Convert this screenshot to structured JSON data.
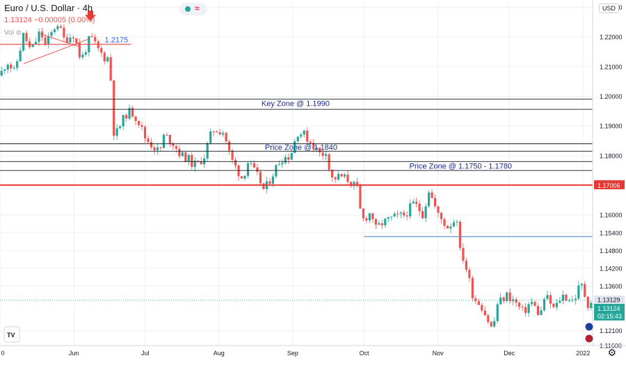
{
  "header": {
    "symbol_title": "Euro / U.S. Dollar · 4h",
    "ohlc_readout": "1.13124 −0.00005 (0.00%)",
    "volume_label": "Vol",
    "currency_button": "USD"
  },
  "colors": {
    "up": "#26a69a",
    "down": "#ef5350",
    "zone_line": "#131722",
    "key_red": "#e53935",
    "support_blue": "#4a7ec2",
    "label_blue": "#1b2a8a",
    "arrow_red": "#e53935"
  },
  "icons": {
    "settings": "gear-icon",
    "tradingview": "tv-logo-icon",
    "eye": "eye-off-icon",
    "flag_eu": "eu-flag-icon",
    "flag_us": "us-flag-icon"
  },
  "price_axis": {
    "labels": [
      "1.23000",
      "1.22000",
      "1.21000",
      "1.20000",
      "1.19000",
      "1.18000",
      "1.17006",
      "1.16000",
      "1.15400",
      "1.14800",
      "1.14200",
      "1.13600",
      "1.13129",
      "1.13124",
      "02:15:43",
      "1.12100",
      "1.11600"
    ],
    "ticks": [
      1.23,
      1.22,
      1.21,
      1.2,
      1.19,
      1.18,
      1.16,
      1.154,
      1.148,
      1.142,
      1.136,
      1.121,
      1.116
    ]
  },
  "time_axis": {
    "labels": [
      "0",
      "Jun",
      "Jul",
      "Aug",
      "Sep",
      "Oct",
      "Nov",
      "Dec",
      "2022"
    ]
  },
  "chart_data": {
    "type": "candlestick",
    "title": "Euro / U.S. Dollar · 4h",
    "xlabel": "",
    "ylabel": "",
    "ylim": [
      1.116,
      1.2315
    ],
    "x_range": [
      "2021-05-01",
      "2022-01-05"
    ],
    "current_price": 1.13124,
    "last_marker": 1.13129,
    "countdown": "02:15:43",
    "grid": true,
    "price_path": [
      [
        "2021-05-01",
        1.207
      ],
      [
        "2021-05-04",
        1.212
      ],
      [
        "2021-05-07",
        1.208
      ],
      [
        "2021-05-11",
        1.221
      ],
      [
        "2021-05-14",
        1.215
      ],
      [
        "2021-05-18",
        1.222
      ],
      [
        "2021-05-20",
        1.217
      ],
      [
        "2021-05-25",
        1.225
      ],
      [
        "2021-05-28",
        1.219
      ],
      [
        "2021-06-01",
        1.221
      ],
      [
        "2021-06-04",
        1.212
      ],
      [
        "2021-06-08",
        1.22
      ],
      [
        "2021-06-11",
        1.216
      ],
      [
        "2021-06-14",
        1.213
      ],
      [
        "2021-06-16",
        1.213
      ],
      [
        "2021-06-17",
        1.199
      ],
      [
        "2021-06-18",
        1.186
      ],
      [
        "2021-06-21",
        1.191
      ],
      [
        "2021-06-23",
        1.194
      ],
      [
        "2021-06-25",
        1.195
      ],
      [
        "2021-06-28",
        1.192
      ],
      [
        "2021-07-01",
        1.186
      ],
      [
        "2021-07-07",
        1.181
      ],
      [
        "2021-07-09",
        1.187
      ],
      [
        "2021-07-13",
        1.184
      ],
      [
        "2021-07-16",
        1.18
      ],
      [
        "2021-07-19",
        1.179
      ],
      [
        "2021-07-21",
        1.177
      ],
      [
        "2021-07-23",
        1.177
      ],
      [
        "2021-07-26",
        1.18
      ],
      [
        "2021-07-28",
        1.186
      ],
      [
        "2021-07-30",
        1.189
      ],
      [
        "2021-08-03",
        1.188
      ],
      [
        "2021-08-06",
        1.179
      ],
      [
        "2021-08-11",
        1.172
      ],
      [
        "2021-08-13",
        1.178
      ],
      [
        "2021-08-18",
        1.172
      ],
      [
        "2021-08-20",
        1.168
      ],
      [
        "2021-08-23",
        1.173
      ],
      [
        "2021-08-25",
        1.176
      ],
      [
        "2021-08-27",
        1.179
      ],
      [
        "2021-08-31",
        1.18
      ],
      [
        "2021-09-03",
        1.188
      ],
      [
        "2021-09-06",
        1.187
      ],
      [
        "2021-09-09",
        1.184
      ],
      [
        "2021-09-13",
        1.18
      ],
      [
        "2021-09-15",
        1.182
      ],
      [
        "2021-09-17",
        1.172
      ],
      [
        "2021-09-21",
        1.173
      ],
      [
        "2021-09-24",
        1.172
      ],
      [
        "2021-09-28",
        1.169
      ],
      [
        "2021-09-30",
        1.158
      ],
      [
        "2021-10-04",
        1.161
      ],
      [
        "2021-10-06",
        1.155
      ],
      [
        "2021-10-08",
        1.157
      ],
      [
        "2021-10-13",
        1.159
      ],
      [
        "2021-10-18",
        1.16
      ],
      [
        "2021-10-22",
        1.164
      ],
      [
        "2021-10-26",
        1.16
      ],
      [
        "2021-10-28",
        1.169
      ],
      [
        "2021-11-01",
        1.16
      ],
      [
        "2021-11-03",
        1.158
      ],
      [
        "2021-11-05",
        1.156
      ],
      [
        "2021-11-09",
        1.159
      ],
      [
        "2021-11-10",
        1.148
      ],
      [
        "2021-11-12",
        1.145
      ],
      [
        "2021-11-16",
        1.132
      ],
      [
        "2021-11-19",
        1.13
      ],
      [
        "2021-11-24",
        1.121
      ],
      [
        "2021-11-26",
        1.13
      ],
      [
        "2021-11-30",
        1.133
      ],
      [
        "2021-12-03",
        1.131
      ],
      [
        "2021-12-07",
        1.127
      ],
      [
        "2021-12-10",
        1.131
      ],
      [
        "2021-12-14",
        1.126
      ],
      [
        "2021-12-16",
        1.133
      ],
      [
        "2021-12-20",
        1.128
      ],
      [
        "2021-12-23",
        1.133
      ],
      [
        "2021-12-28",
        1.131
      ],
      [
        "2021-12-31",
        1.137
      ],
      [
        "2022-01-03",
        1.13
      ],
      [
        "2022-01-05",
        1.1312
      ]
    ]
  },
  "annotations": {
    "level_top": "1.2175",
    "key_zone": "Key Zone @ 1.1990",
    "price_zone_1": "Price Zone @ 1.1840",
    "price_zone_2": "Price Zone @ 1.1750 - 1.1780",
    "red_level": "1.17006"
  }
}
